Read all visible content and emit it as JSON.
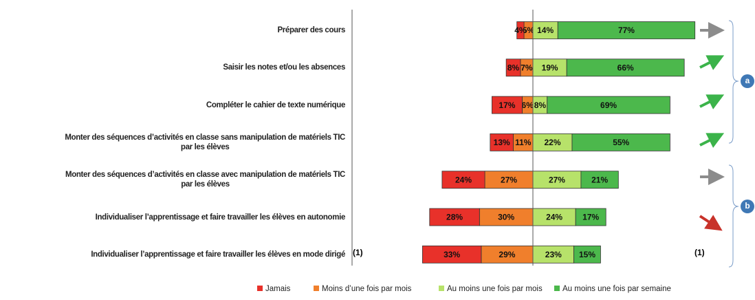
{
  "chart_data": {
    "type": "diverging_bar",
    "categories": [
      "Préparer des cours",
      "Saisir les notes et/ou les absences",
      "Compléter le cahier de texte numérique",
      "Monter des séquences d’activités en classe sans manipulation de matériels TIC\npar les élèves",
      "Monter des séquences d’activités en classe avec manipulation de matériels TIC\npar les élèves",
      "Individualiser l’apprentissage et faire travailler les élèves en autonomie",
      "Individualiser l’apprentissage et faire travailler les élèves en mode dirigé"
    ],
    "series": [
      {
        "name": "Jamais",
        "color": "#e8312a",
        "side": "negative",
        "values": [
          4,
          8,
          17,
          13,
          24,
          28,
          33
        ],
        "value_labels": [
          "4%",
          "8%",
          "17%",
          "13%",
          "24%",
          "28%",
          "33%"
        ]
      },
      {
        "name": "Moins d’une fois par mois",
        "color": "#f07f2c",
        "side": "negative",
        "values": [
          5,
          7,
          6,
          11,
          27,
          30,
          29
        ],
        "value_labels": [
          "5%",
          "7%",
          "6%",
          "11%",
          "27%",
          "30%",
          "29%"
        ]
      },
      {
        "name": "Au moins une fois par mois",
        "color": "#b7e26a",
        "side": "positive",
        "values": [
          14,
          19,
          8,
          22,
          27,
          24,
          23
        ],
        "value_labels": [
          "14%",
          "19%",
          "8%",
          "22%",
          "27%",
          "24%",
          "23%"
        ]
      },
      {
        "name": "Au moins une fois par semaine",
        "color": "#4cb84c",
        "side": "positive",
        "values": [
          77,
          66,
          69,
          55,
          21,
          17,
          15
        ],
        "value_labels": [
          "77%",
          "66%",
          "69%",
          "55%",
          "21%",
          "17%",
          "15%"
        ]
      }
    ],
    "annotations": [
      "(1)",
      "(1)",
      "a",
      "b"
    ]
  }
}
